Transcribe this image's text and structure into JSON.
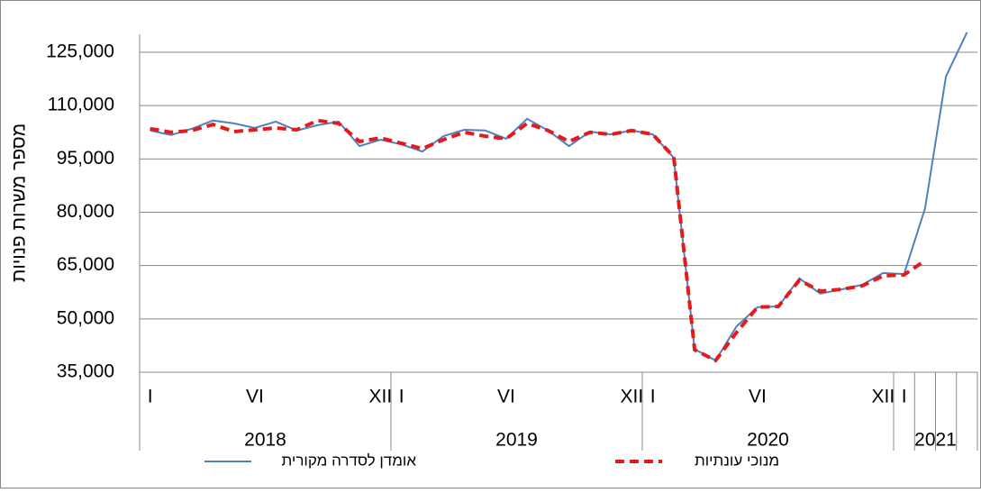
{
  "chart_data": {
    "type": "line",
    "y_label": "מספר משרות  פנויות",
    "categories": [
      "I",
      null,
      null,
      null,
      null,
      "VI",
      null,
      null,
      null,
      null,
      null,
      "XII",
      "I",
      null,
      null,
      null,
      null,
      "VI",
      null,
      null,
      null,
      null,
      null,
      "XII",
      "I",
      null,
      null,
      null,
      null,
      "VI",
      null,
      null,
      null,
      null,
      null,
      "XII",
      "I",
      null,
      null,
      null
    ],
    "year_groups": [
      "2018",
      "2019",
      "2020",
      "2021"
    ],
    "series": [
      {
        "name": "אומדן לסדרה מקורית",
        "color": "#4f81bd",
        "dashed": false,
        "values": [
          103000,
          101700,
          103500,
          105800,
          105000,
          103700,
          105500,
          103000,
          104500,
          105500,
          98600,
          100400,
          99100,
          97100,
          101400,
          103200,
          103000,
          100700,
          106300,
          103000,
          98600,
          102700,
          101900,
          103000,
          101900,
          95300,
          41500,
          38300,
          47900,
          53300,
          53500,
          61400,
          57100,
          58300,
          59600,
          62900,
          62600,
          81100,
          118200,
          130600
        ]
      },
      {
        "name": "מנוכי עונתיות",
        "color": "#e41a1c",
        "dashed": true,
        "values": [
          103500,
          102500,
          103000,
          104700,
          102700,
          103200,
          103700,
          103200,
          105800,
          105000,
          99900,
          100900,
          99400,
          97900,
          100400,
          102500,
          101400,
          100700,
          105000,
          103000,
          99900,
          102500,
          101900,
          103000,
          101900,
          95600,
          41300,
          38300,
          46200,
          53300,
          53500,
          60900,
          57800,
          58300,
          59300,
          62100,
          62400,
          66400,
          null,
          null
        ]
      }
    ],
    "ylim": [
      35000,
      125000
    ],
    "yticks": [
      {
        "value": 35000,
        "label": "35,000"
      },
      {
        "value": 50000,
        "label": "50,000"
      },
      {
        "value": 65000,
        "label": "65,000"
      },
      {
        "value": 80000,
        "label": "80,000"
      },
      {
        "value": 95000,
        "label": "95,000"
      },
      {
        "value": 110000,
        "label": "110,000"
      },
      {
        "value": 125000,
        "label": "125,000"
      }
    ],
    "grid": true
  }
}
